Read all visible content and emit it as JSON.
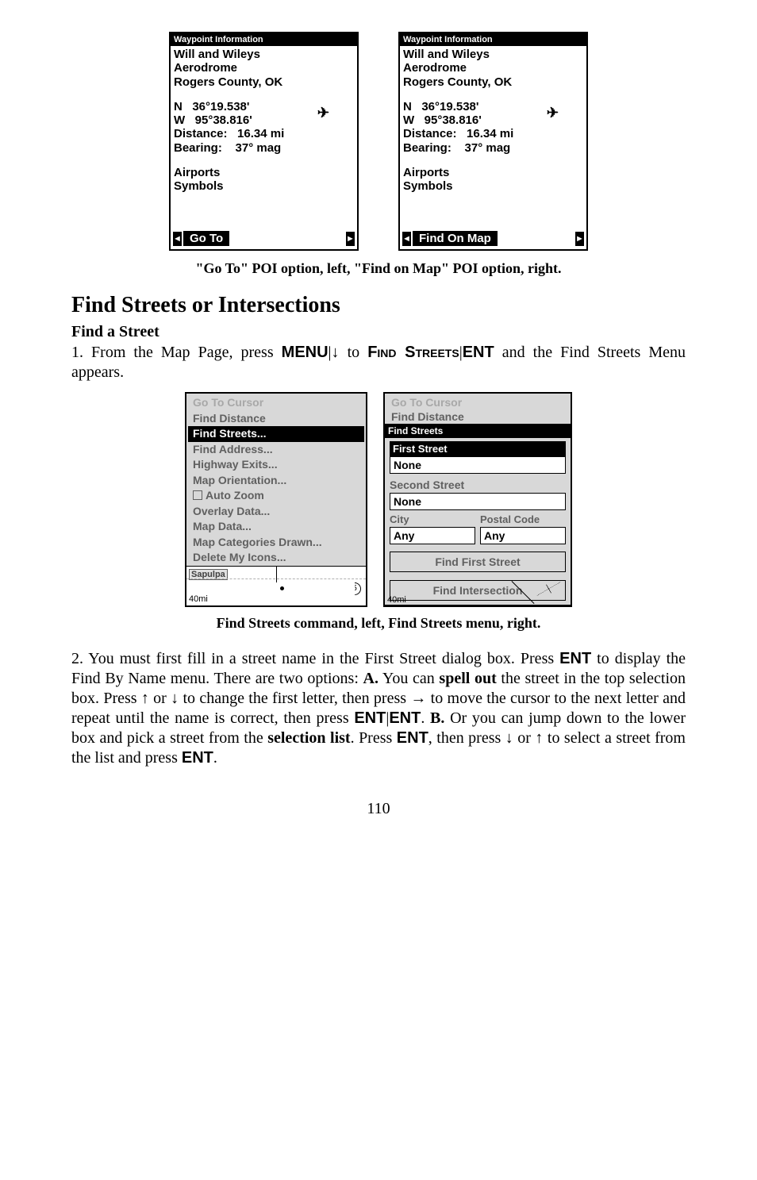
{
  "waypoint_left": {
    "titlebar": "Waypoint Information",
    "lines": [
      "Will and Wileys",
      "Aerodrome",
      "Rogers County, OK"
    ],
    "coord_n": "N   36°19.538'",
    "coord_w": "W   95°38.816'",
    "distance": "Distance:   16.34 mi",
    "bearing": "Bearing:    37° mag",
    "tags": [
      "Airports",
      "Symbols"
    ],
    "footer_label": "Go To"
  },
  "waypoint_right": {
    "titlebar": "Waypoint Information",
    "lines": [
      "Will and Wileys",
      "Aerodrome",
      "Rogers County, OK"
    ],
    "coord_n": "N   36°19.538'",
    "coord_w": "W   95°38.816'",
    "distance": "Distance:   16.34 mi",
    "bearing": "Bearing:    37° mag",
    "tags": [
      "Airports",
      "Symbols"
    ],
    "footer_label": "Find On Map"
  },
  "caption1": "\"Go To\" POI option, left, \"Find on Map\" POI option, right.",
  "section_heading": "Find Streets or Intersections",
  "sub_heading": "Find a Street",
  "para1_pre": "1. From the Map Page, press ",
  "para1_key1": "MENU",
  "para1_mid1": "|↓ to ",
  "para1_sc": "Find Streets",
  "para1_mid2": "|",
  "para1_key2": "ENT",
  "para1_post": " and the Find Streets Menu appears.",
  "menu_left": {
    "items": [
      {
        "label": "Go To Cursor",
        "cls": "dim"
      },
      {
        "label": "Find Distance",
        "cls": ""
      },
      {
        "label": "Find Streets...",
        "cls": "selected"
      },
      {
        "label": "Find Address...",
        "cls": ""
      },
      {
        "label": "Highway Exits...",
        "cls": ""
      },
      {
        "label": "Map Orientation...",
        "cls": ""
      },
      {
        "label": "Auto Zoom",
        "cls": "",
        "chk": true
      },
      {
        "label": "Overlay Data...",
        "cls": ""
      },
      {
        "label": "Map Data...",
        "cls": ""
      },
      {
        "label": "Map Categories Drawn...",
        "cls": ""
      },
      {
        "label": "Delete My Icons...",
        "cls": ""
      }
    ],
    "map_place": "Sapulpa",
    "map_scale": "40mi",
    "circ": "5"
  },
  "form_right": {
    "top_dim": "Go To Cursor",
    "top_dark": "Find Distance",
    "titlebar": "Find Streets",
    "first_label": "First Street",
    "first_val": "None",
    "second_label": "Second Street",
    "second_val": "None",
    "city_label": "City",
    "postal_label": "Postal Code",
    "city_val": "Any",
    "postal_val": "Any",
    "btn1": "Find First Street",
    "btn2": "Find Intersection",
    "map_scale": "40mi"
  },
  "caption2": "Find Streets command, left, Find Streets menu, right.",
  "para2": {
    "t1": "2. You must first fill in a street name in the First Street dialog box. Press ",
    "k1": "ENT",
    "t2": " to display the Find By Name menu. There are two options: ",
    "bA": "A.",
    "t3": " You can ",
    "bSO": "spell out",
    "t4": " the street in the top selection box. Press ↑ or ↓ to change the first letter, then press → to move the cursor to the next letter and repeat until the name is correct, then press ",
    "k2": "ENT",
    "t5": "|",
    "k3": "ENT",
    "t6": ". ",
    "bB": "B.",
    "t7": " Or you can jump down to the lower box and pick a street from the ",
    "bSL": "selection list",
    "t8": ". Press ",
    "k4": "ENT",
    "t9": ", then press ↓ or ↑ to select a street from the list and press ",
    "k5": "ENT",
    "t10": "."
  },
  "page_number": "110"
}
